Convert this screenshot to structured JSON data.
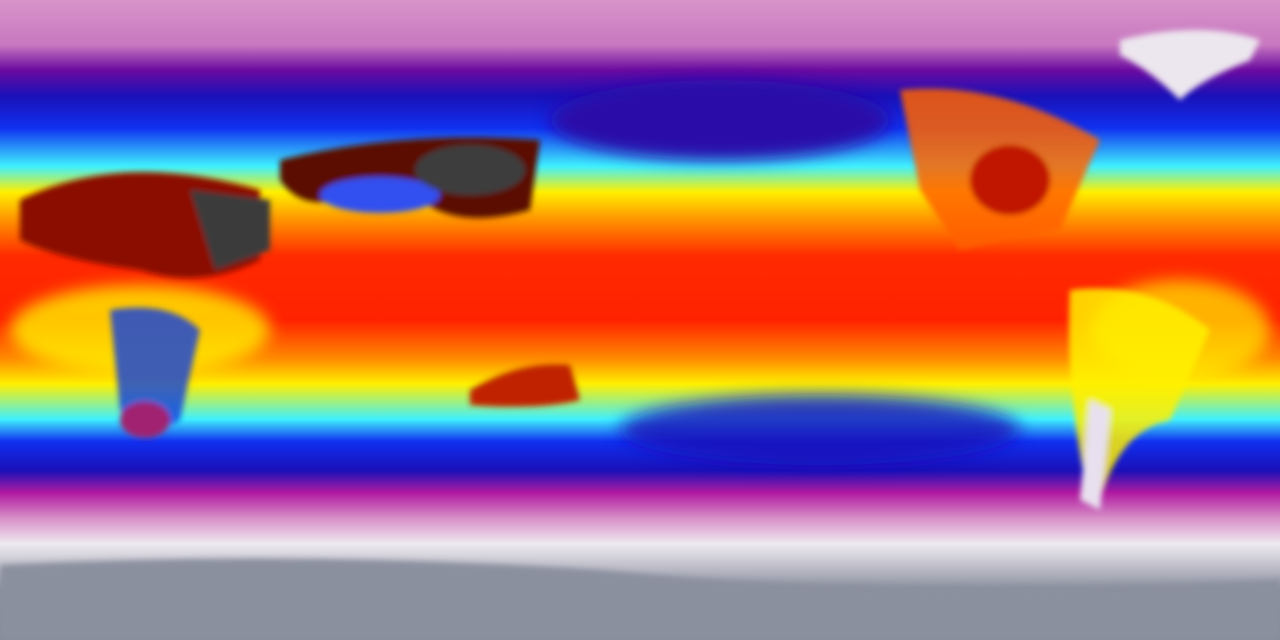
{
  "map": {
    "projection": "equirectangular",
    "type": "global temperature field",
    "colors": {
      "polar_north": "#d894c9",
      "cold_purple": "#9a1ea0",
      "deep_blue": "#1a10b8",
      "blue": "#1030f0",
      "cyan": "#40f0ff",
      "yellow": "#fff000",
      "orange": "#ff9a00",
      "red": "#ff2a00",
      "deep_red": "#c01000",
      "hot_dark": "#3a3a3a",
      "magenta": "#c01a9a",
      "white_ice": "#eeeaf0",
      "antarctic_gray": "#8b909f",
      "greenland": "#ece6ee"
    }
  }
}
